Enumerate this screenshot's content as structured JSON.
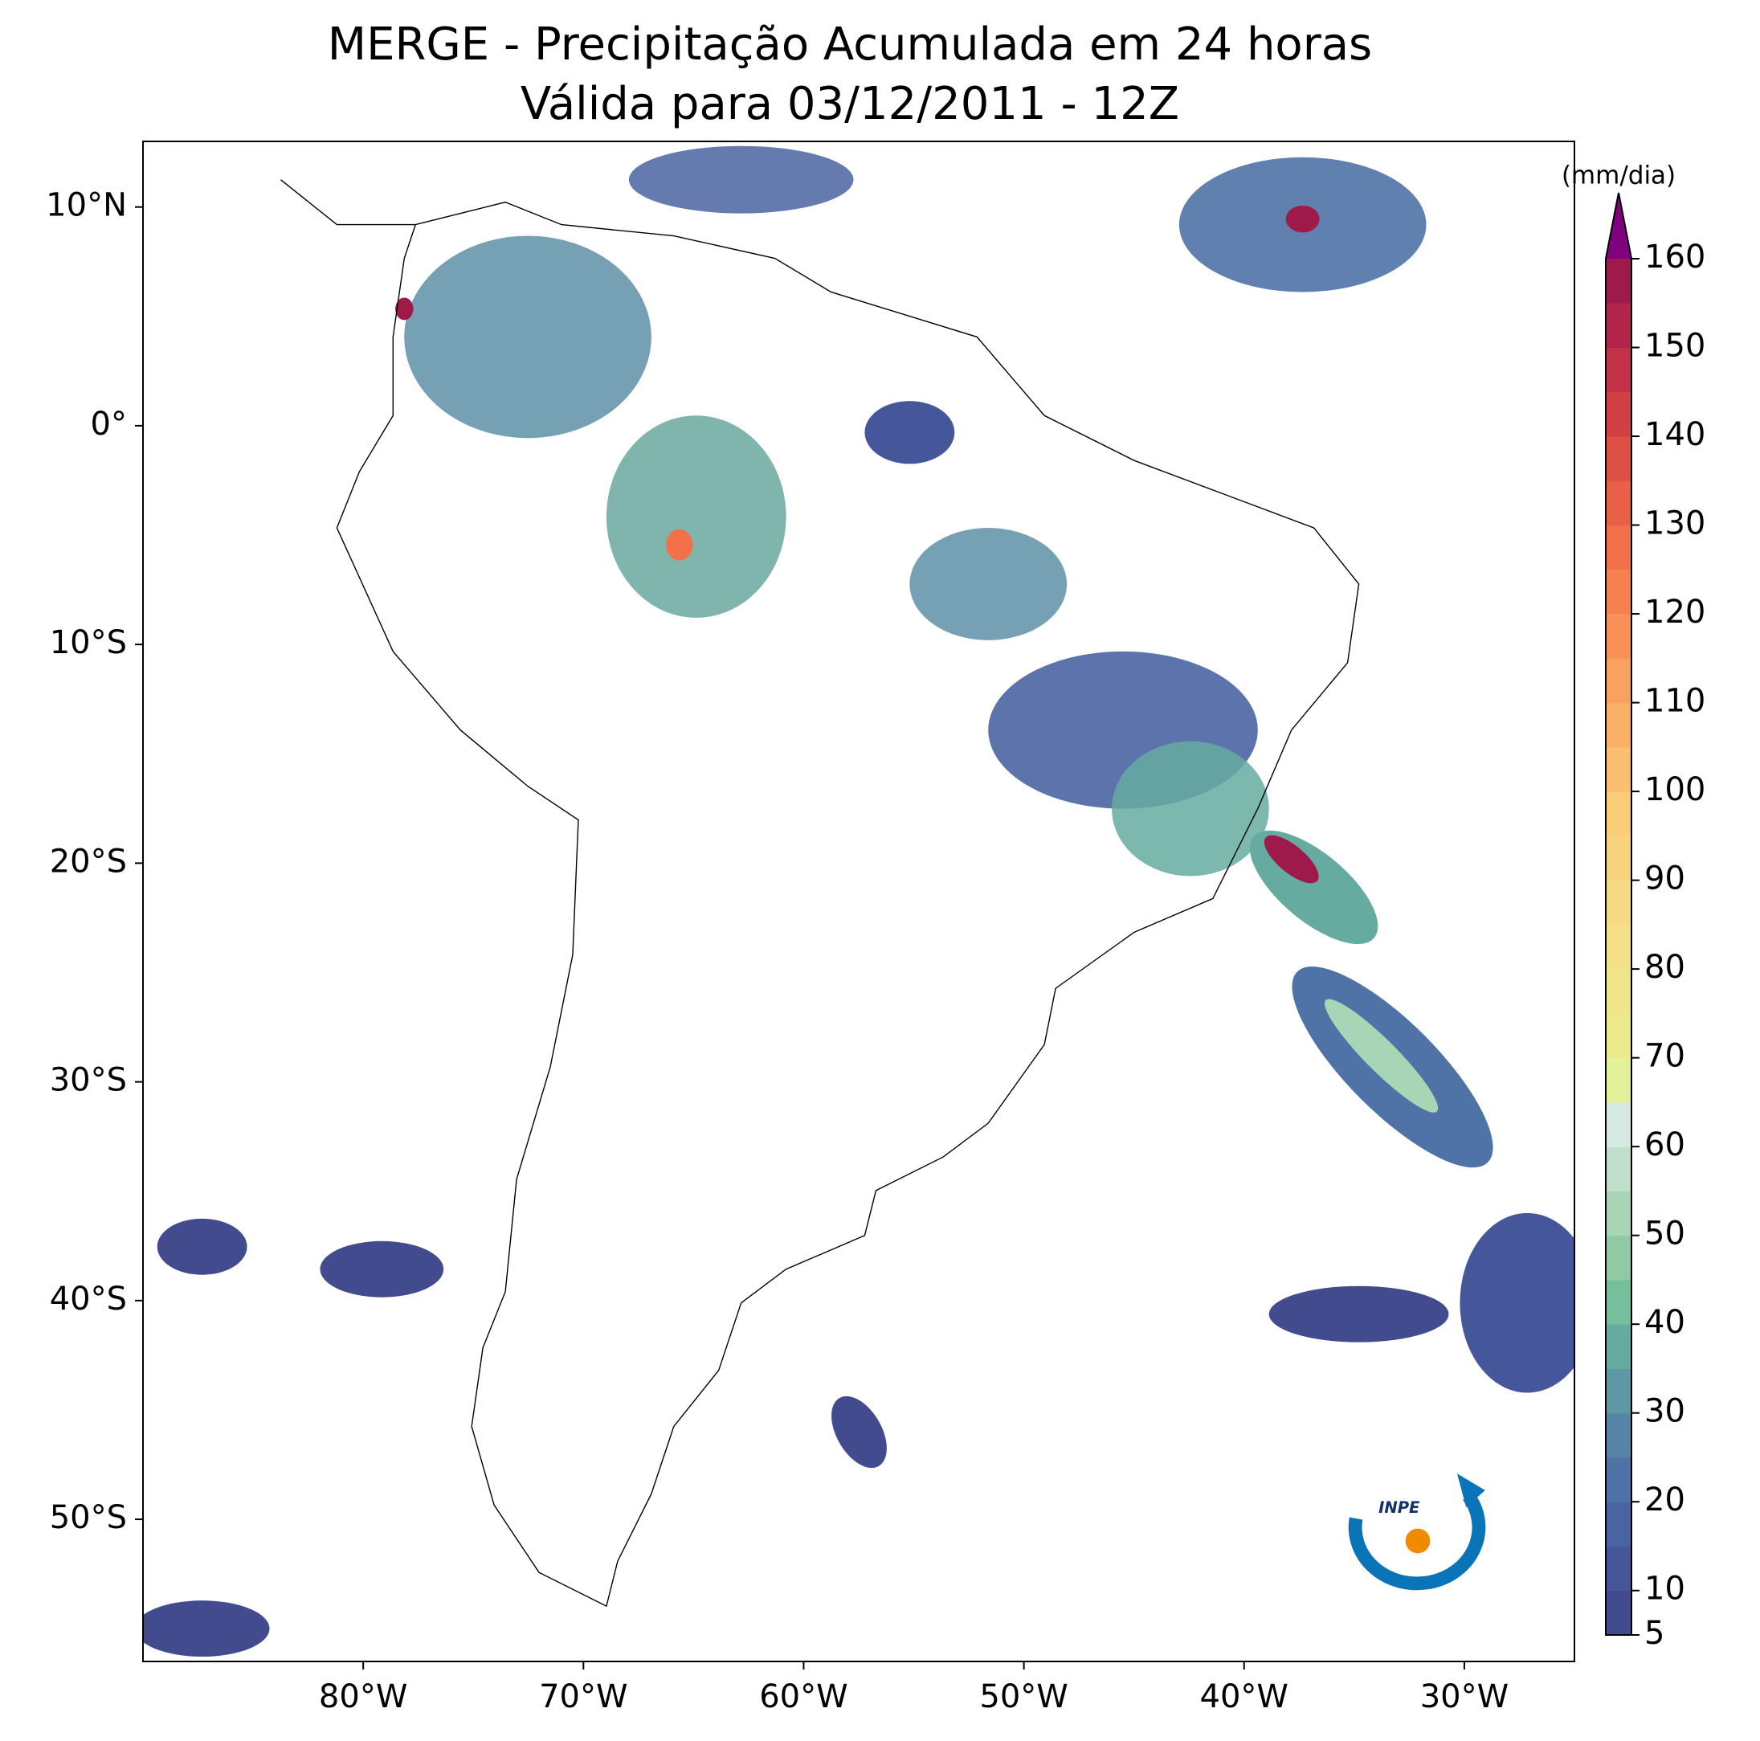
{
  "title": "MERGE - Precipitação Acumulada em 24 horas",
  "subtitle": "Válida para 03/12/2011 - 12Z",
  "map": {
    "lonlim": [
      -90,
      -25
    ],
    "latlim": [
      -56.5,
      13
    ],
    "lonticks": [
      {
        "value": -80,
        "label": "80°W"
      },
      {
        "value": -70,
        "label": "70°W"
      },
      {
        "value": -60,
        "label": "60°W"
      },
      {
        "value": -50,
        "label": "50°W"
      },
      {
        "value": -40,
        "label": "40°W"
      },
      {
        "value": -30,
        "label": "30°W"
      }
    ],
    "latticks": [
      {
        "value": 10,
        "label": "10°N"
      },
      {
        "value": 0,
        "label": "0°"
      },
      {
        "value": -10,
        "label": "10°S"
      },
      {
        "value": -20,
        "label": "20°S"
      },
      {
        "value": -30,
        "label": "30°S"
      },
      {
        "value": -40,
        "label": "40°S"
      },
      {
        "value": -50,
        "label": "50°S"
      }
    ]
  },
  "colorbar": {
    "label": "(mm/dia)",
    "lim": [
      5,
      160
    ],
    "ticks": [
      5,
      10,
      20,
      30,
      40,
      50,
      60,
      70,
      80,
      90,
      100,
      110,
      120,
      130,
      140,
      150,
      160
    ],
    "colors": [
      "#414b8d",
      "#46569a",
      "#4a64a2",
      "#4f72a7",
      "#5684a6",
      "#5e98a4",
      "#66aba0",
      "#75bf9d",
      "#8fcaa4",
      "#a8d5b5",
      "#c0e0cb",
      "#d7e9e3",
      "#e4f19b",
      "#ebea8c",
      "#efe58a",
      "#f3e088",
      "#f6da84",
      "#f9d47f",
      "#fbcd79",
      "#fbbf6f",
      "#fab066",
      "#f9a15e",
      "#f79157",
      "#f58150",
      "#f2704a",
      "#e86046",
      "#dd5045",
      "#d14045",
      "#c23347",
      "#b1254b",
      "#9e1a4a"
    ],
    "extend_color": "#800080"
  },
  "logo": {
    "text": "INPE"
  }
}
